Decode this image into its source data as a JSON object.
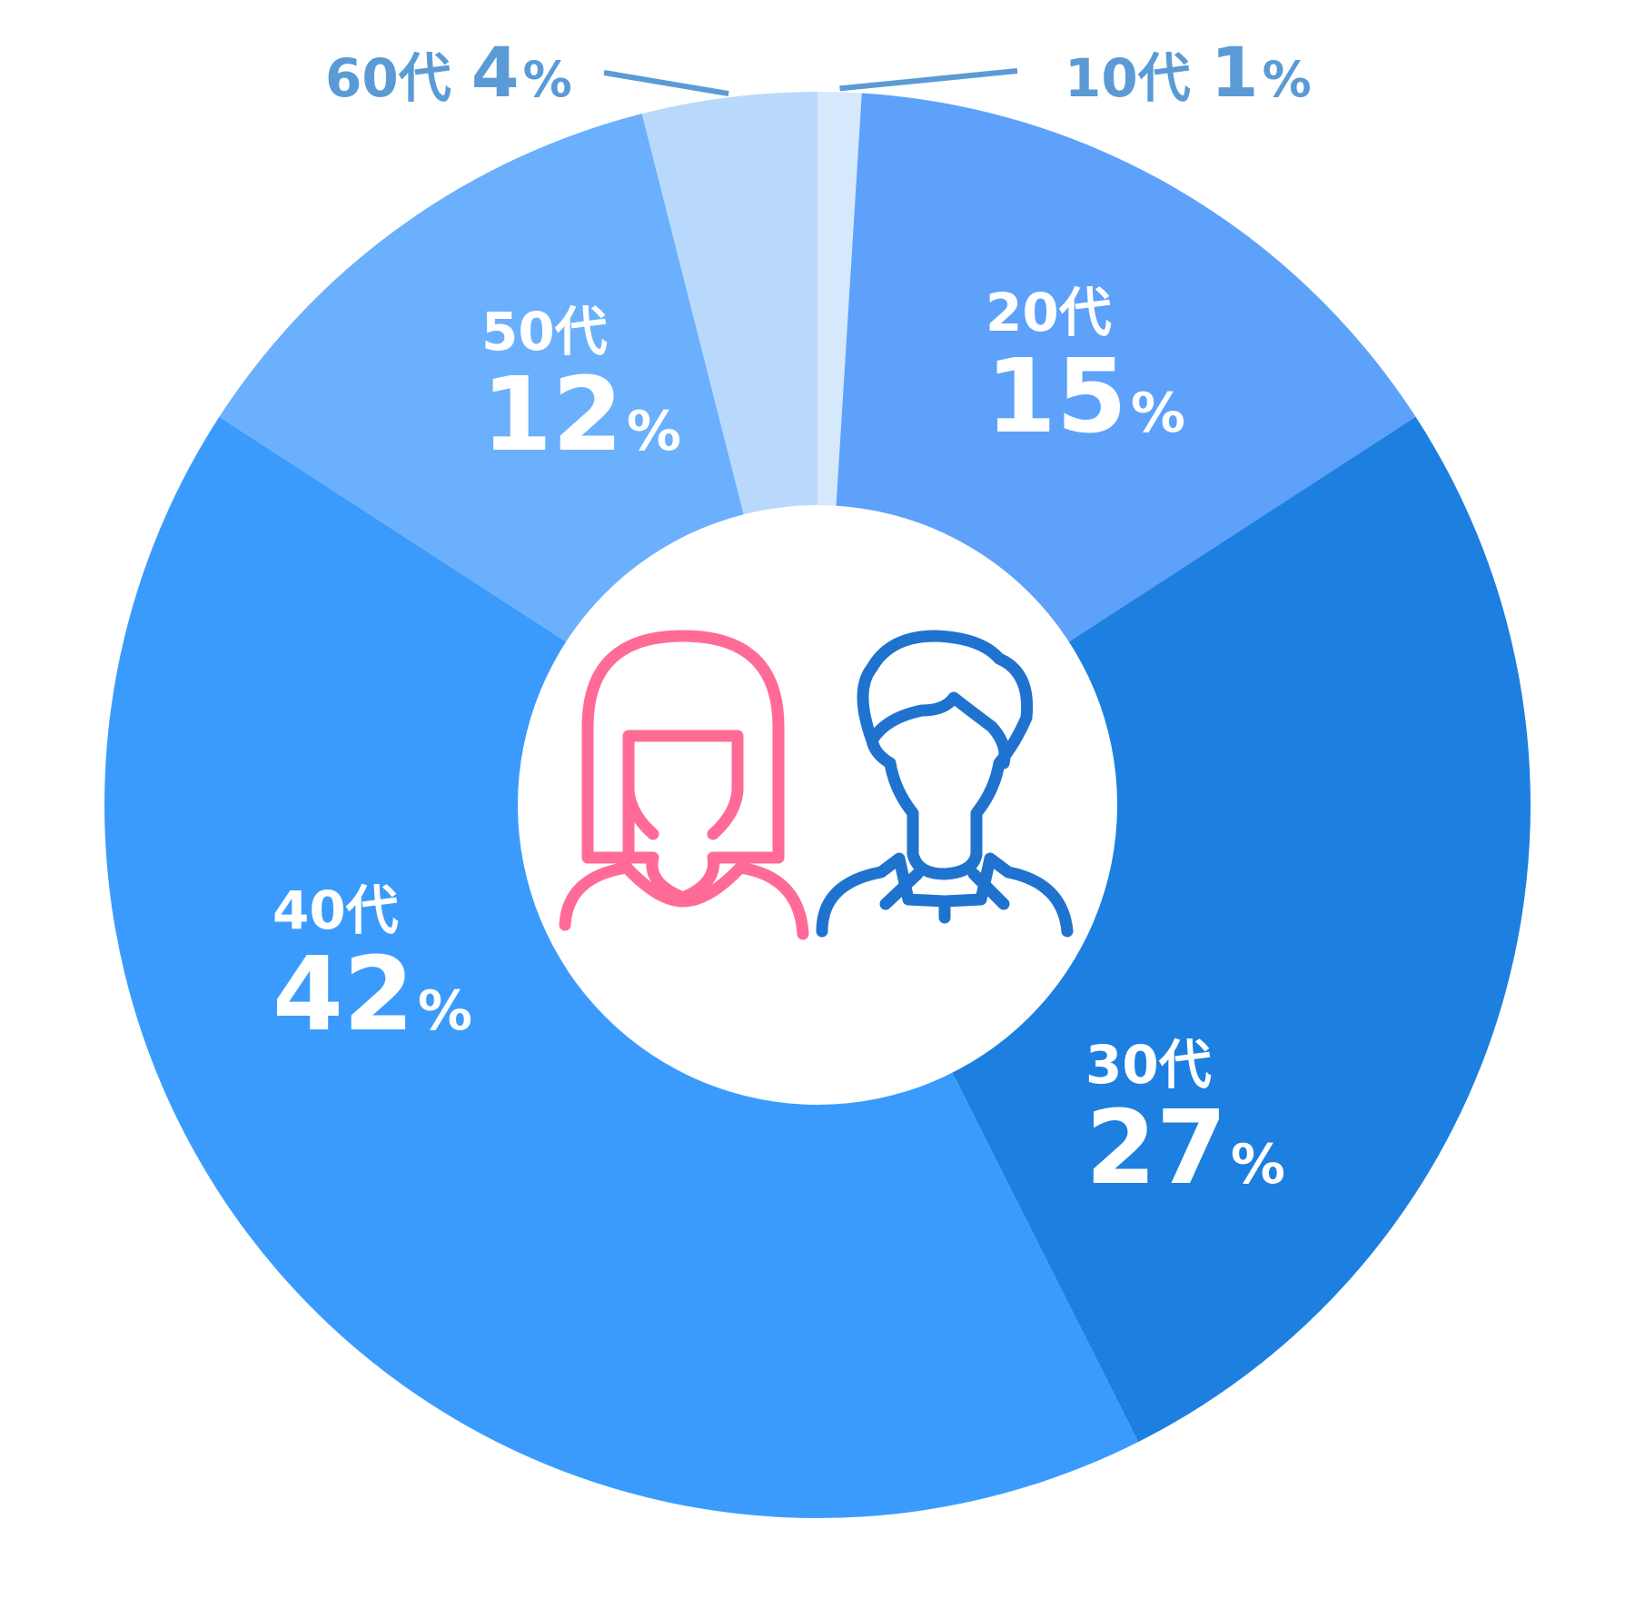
{
  "chart_data": {
    "type": "pie",
    "categories": [
      "10代",
      "20代",
      "30代",
      "40代",
      "50代",
      "60代"
    ],
    "values": [
      1,
      15,
      27,
      42,
      12,
      4
    ],
    "percent_suffix": "%",
    "donut": true,
    "start_angle_deg": 0,
    "direction": "clockwise",
    "colors": [
      "#d6e8fc",
      "#5da1fb",
      "#1d7fe0",
      "#3b9bfd",
      "#6ab0fd",
      "#b9d9fc"
    ],
    "outside_label_color": "#5b9bd5",
    "center_icons": [
      {
        "name": "woman-icon",
        "color": "#ff6b96"
      },
      {
        "name": "man-icon",
        "color": "#1f73cf"
      }
    ]
  }
}
